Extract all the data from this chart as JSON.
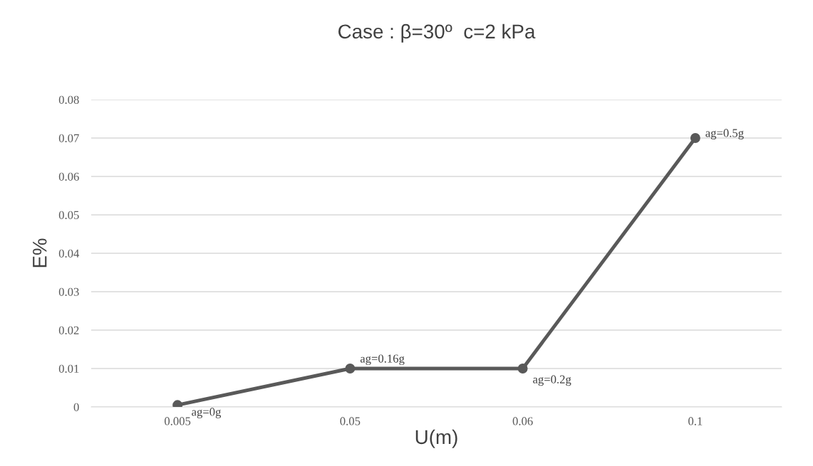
{
  "chart_data": {
    "type": "line",
    "title": "Case : β=30º  c=2 kPa",
    "xlabel": "U(m)",
    "ylabel": "E%",
    "categories": [
      "0.005",
      "0.05",
      "0.06",
      "0.1"
    ],
    "series": [
      {
        "color": "#595959",
        "values": [
          0.0005,
          0.01,
          0.01,
          0.07
        ]
      }
    ],
    "ylim": [
      0,
      0.08
    ],
    "yticks": [
      0,
      0.01,
      0.02,
      0.03,
      0.04,
      0.05,
      0.06,
      0.07,
      0.08
    ],
    "grid": "y",
    "marker": "circle",
    "line_style": "solid",
    "legend": false,
    "annotations": [
      {
        "text": "ag=0g",
        "x": "0.005",
        "y": 0.0005
      },
      {
        "text": "ag=0.16g",
        "x": "0.05",
        "y": 0.01
      },
      {
        "text": "ag=0.2g",
        "x": "0.06",
        "y": 0.01
      },
      {
        "text": "ag=0.5g",
        "x": "0.1",
        "y": 0.07
      }
    ]
  }
}
